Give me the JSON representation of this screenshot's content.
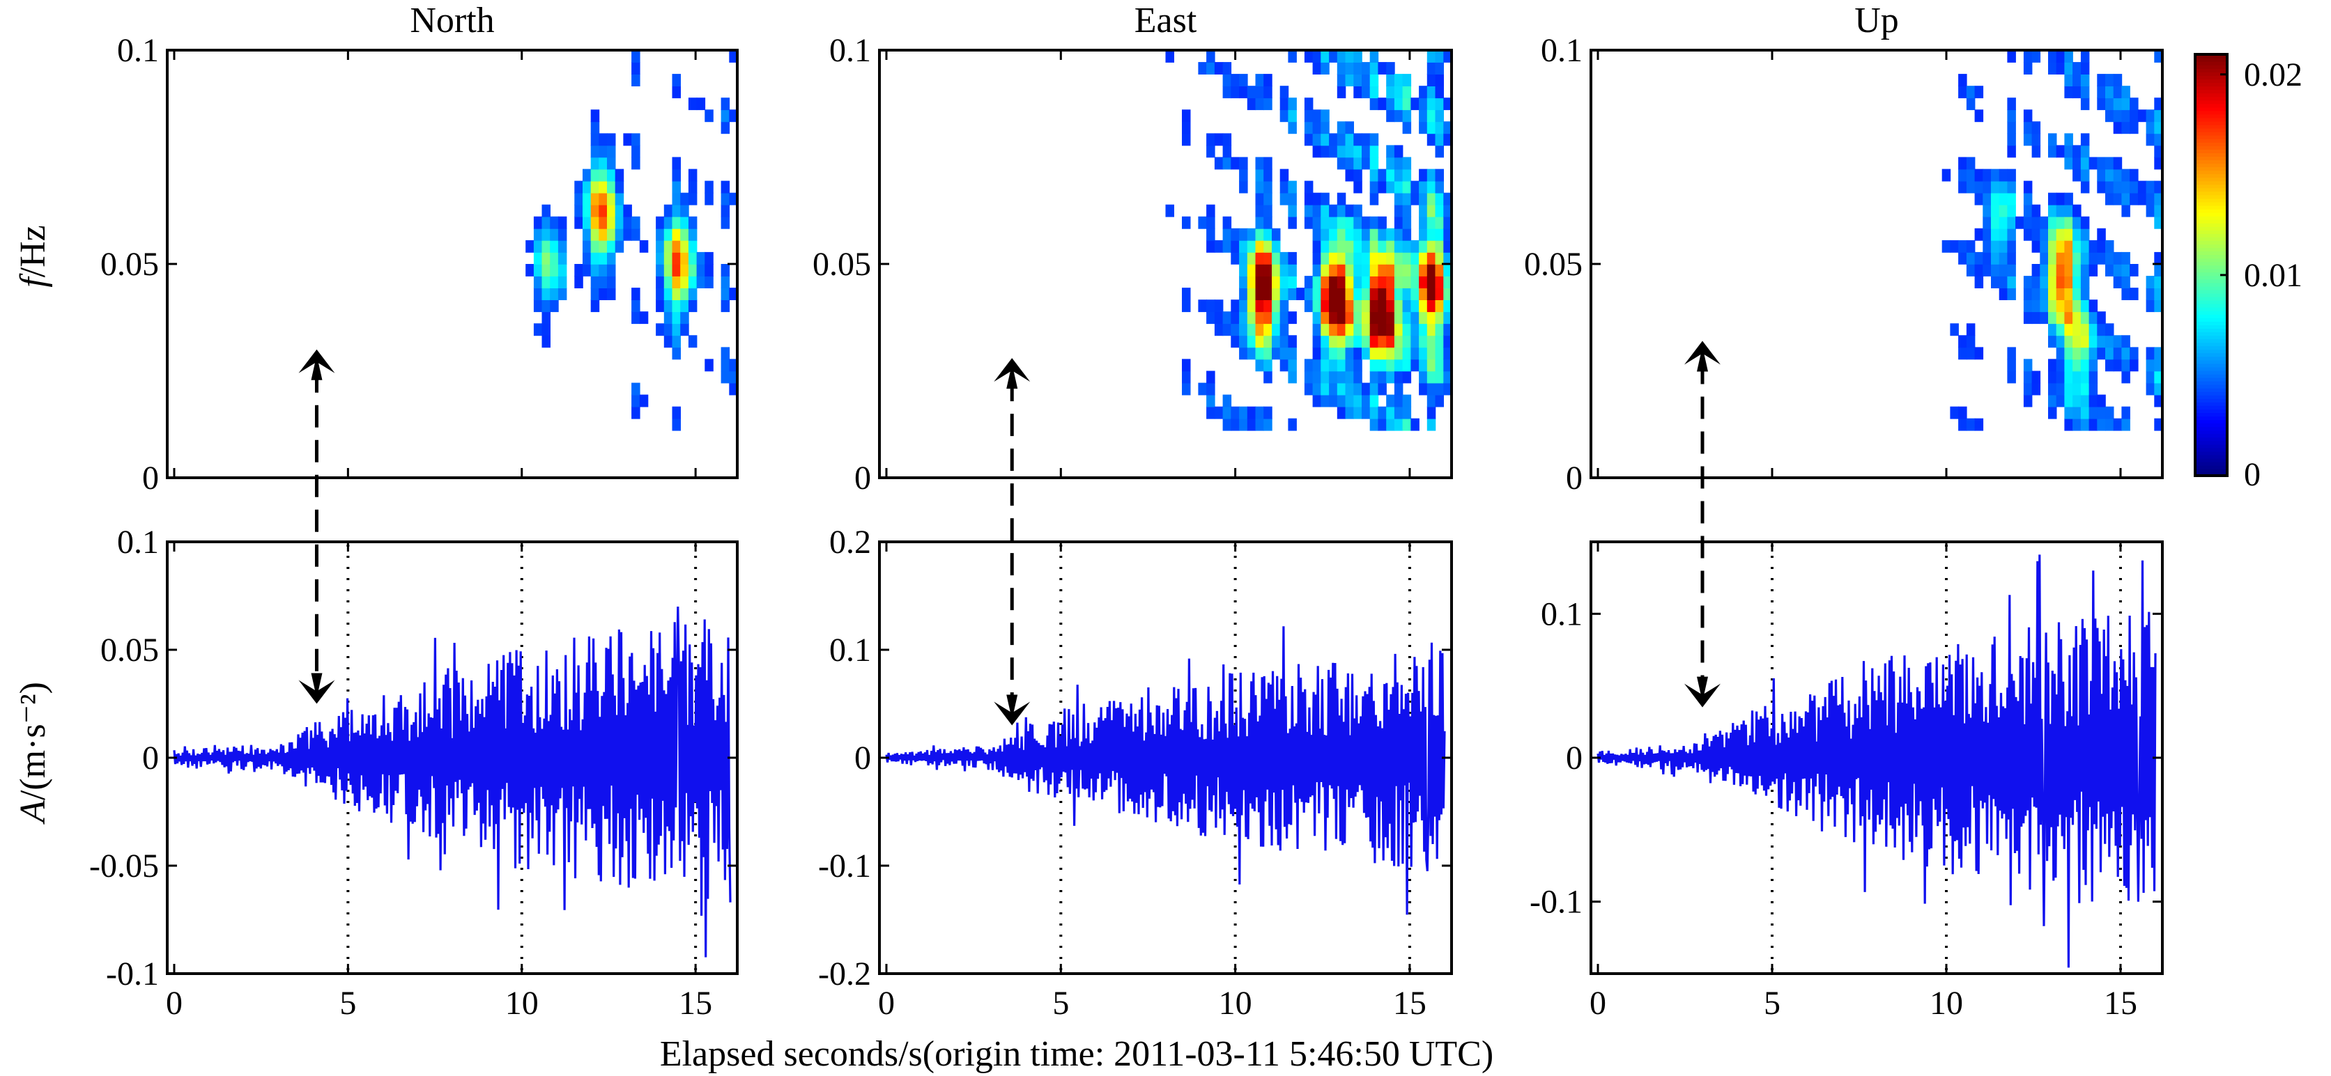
{
  "figure": {
    "xlabel": "Elapsed seconds/s(origin time: 2011-03-11 5:46:50 UTC)",
    "colorbar": {
      "ticks": [
        "0.02",
        "0.01",
        "0"
      ],
      "range": [
        0,
        0.021
      ],
      "colormap": "jet"
    },
    "arrival_color": "#000000",
    "trace_color": "#1010ee"
  },
  "chart_data": [
    {
      "type": "heatmap",
      "panel": "spectrogram-north",
      "title": "North",
      "ylabel": "f/Hz",
      "xlim": [
        -0.2,
        16.2
      ],
      "ylim": [
        0,
        0.1
      ],
      "yticks": [
        "0.1",
        "0.05",
        "0"
      ],
      "arrival_time": 4.1,
      "arrival_freq": 0.03,
      "hotspots": [
        {
          "t": 12.3,
          "f": 0.062,
          "peak": 0.015
        },
        {
          "t": 14.5,
          "f": 0.05,
          "peak": 0.014
        },
        {
          "t": 10.8,
          "f": 0.05,
          "peak": 0.008
        }
      ]
    },
    {
      "type": "heatmap",
      "panel": "spectrogram-east",
      "title": "East",
      "xlim": [
        -0.2,
        16.2
      ],
      "ylim": [
        0,
        0.1
      ],
      "yticks": [
        "0.1",
        "0.05",
        "0"
      ],
      "arrival_time": 3.6,
      "arrival_freq": 0.028,
      "hotspots": [
        {
          "t": 10.8,
          "f": 0.044,
          "peak": 0.02
        },
        {
          "t": 12.9,
          "f": 0.042,
          "peak": 0.021
        },
        {
          "t": 14.2,
          "f": 0.04,
          "peak": 0.021
        },
        {
          "t": 15.6,
          "f": 0.045,
          "peak": 0.016
        }
      ]
    },
    {
      "type": "heatmap",
      "panel": "spectrogram-up",
      "title": "Up",
      "xlim": [
        -0.2,
        16.2
      ],
      "ylim": [
        0,
        0.1
      ],
      "yticks": [
        "0.1",
        "0.05",
        "0"
      ],
      "arrival_time": 3.0,
      "arrival_freq": 0.032,
      "hotspots": [
        {
          "t": 13.3,
          "f": 0.048,
          "peak": 0.015
        },
        {
          "t": 13.8,
          "f": 0.03,
          "peak": 0.008
        },
        {
          "t": 11.5,
          "f": 0.06,
          "peak": 0.007
        }
      ]
    },
    {
      "type": "line",
      "panel": "trace-north",
      "ylabel": "A/(m·s⁻²)",
      "xlim": [
        -0.2,
        16.2
      ],
      "ylim": [
        -0.1,
        0.1
      ],
      "xticks": [
        0,
        5,
        10,
        15
      ],
      "ytick_values": [
        0.1,
        0.05,
        0,
        -0.05,
        -0.1
      ],
      "yticks": [
        "0.1",
        "0.05",
        "0",
        "-0.05",
        "-0.1"
      ],
      "arrival_time": 4.1,
      "arrival_amp": 0.025,
      "envelope": [
        [
          0,
          0.003
        ],
        [
          3,
          0.006
        ],
        [
          4.5,
          0.018
        ],
        [
          7,
          0.03
        ],
        [
          10,
          0.045
        ],
        [
          14,
          0.055
        ],
        [
          16,
          0.06
        ]
      ],
      "extremes": [
        [
          14.5,
          0.07
        ],
        [
          16,
          -0.067
        ]
      ]
    },
    {
      "type": "line",
      "panel": "trace-east",
      "xlim": [
        -0.2,
        16.2
      ],
      "ylim": [
        -0.2,
        0.2
      ],
      "xticks": [
        0,
        5,
        10,
        15
      ],
      "ytick_values": [
        0.2,
        0.1,
        0,
        -0.1,
        -0.2
      ],
      "yticks": [
        "0.2",
        "0.1",
        "0",
        "-0.1",
        "-0.2"
      ],
      "arrival_time": 3.6,
      "arrival_amp": 0.03,
      "envelope": [
        [
          0,
          0.004
        ],
        [
          3,
          0.01
        ],
        [
          4.5,
          0.035
        ],
        [
          7,
          0.05
        ],
        [
          10,
          0.07
        ],
        [
          14,
          0.085
        ],
        [
          16,
          0.095
        ]
      ],
      "extremes": [
        [
          15.5,
          -0.105
        ]
      ]
    },
    {
      "type": "line",
      "panel": "trace-up",
      "xlim": [
        -0.2,
        16.2
      ],
      "ylim": [
        -0.15,
        0.15
      ],
      "xticks": [
        0,
        5,
        10,
        15
      ],
      "ytick_values": [
        0.1,
        0,
        -0.1
      ],
      "yticks": [
        "0.1",
        "0",
        "-0.1"
      ],
      "arrival_time": 3.0,
      "arrival_amp": 0.035,
      "envelope": [
        [
          0,
          0.004
        ],
        [
          3,
          0.01
        ],
        [
          4.5,
          0.03
        ],
        [
          7,
          0.05
        ],
        [
          10,
          0.07
        ],
        [
          13,
          0.085
        ],
        [
          16,
          0.09
        ]
      ],
      "extremes": [
        [
          12.8,
          -0.117
        ],
        [
          15.5,
          -0.1
        ]
      ]
    }
  ]
}
